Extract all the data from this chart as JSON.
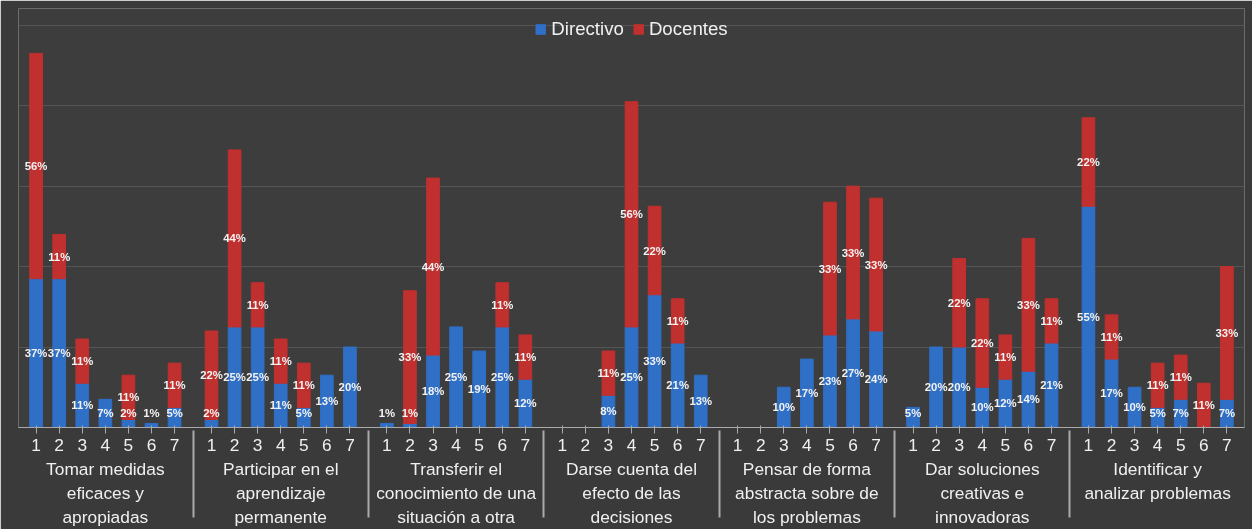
{
  "chart_data": {
    "type": "bar",
    "stacked": true,
    "data_labels": true,
    "legend": "top",
    "grid": "y",
    "categories": [
      "1",
      "2",
      "3",
      "4",
      "5",
      "6",
      "7",
      "1",
      "2",
      "3",
      "4",
      "5",
      "6",
      "7",
      "1",
      "2",
      "3",
      "4",
      "5",
      "6",
      "7",
      "1",
      "2",
      "3",
      "4",
      "5",
      "6",
      "7",
      "1",
      "2",
      "3",
      "4",
      "5",
      "6",
      "7",
      "1",
      "2",
      "3",
      "4",
      "5",
      "6",
      "7",
      "1",
      "2",
      "3",
      "4",
      "5",
      "6",
      "7"
    ],
    "annotations": [
      "Tomar medidas eficaces y apropiadas",
      "Participar en el aprendizaje permanente",
      "Transferir el conocimiento de una situación a otra",
      "Darse cuenta del efecto de las decisiones",
      "Pensar de forma abstracta sobre de los problemas",
      "Dar soluciones creativas e innovadoras",
      "Identificar y analizar problemas"
    ],
    "tick_labels": "x",
    "series": [
      {
        "name": "Directivo",
        "color": "#2f6fc6",
        "values": [
          37,
          37,
          11,
          7,
          2,
          1,
          5,
          2,
          25,
          25,
          11,
          5,
          13,
          20,
          1,
          1,
          18,
          25,
          19,
          25,
          12,
          null,
          null,
          8,
          25,
          33,
          21,
          13,
          null,
          null,
          10,
          17,
          23,
          27,
          24,
          5,
          20,
          20,
          10,
          12,
          14,
          21,
          55,
          17,
          10,
          5,
          7,
          null,
          7
        ],
        "value_labels": [
          "37%",
          "37%",
          "11%",
          "7%",
          "2%",
          "1%",
          "5%",
          "2%",
          "25%",
          "25%",
          "11%",
          "5%",
          "13%",
          "20%",
          "1%",
          "1%",
          "18%",
          "25%",
          "19%",
          "25%",
          "12%",
          null,
          null,
          "8%",
          "25%",
          "33%",
          "21%",
          "13%",
          null,
          null,
          "10%",
          "17%",
          "23%",
          "27%",
          "24%",
          "5%",
          "20%",
          "20%",
          "10%",
          "12%",
          "14%",
          "21%",
          "55%",
          "17%",
          "10%",
          "5%",
          "7%",
          null,
          "7%"
        ]
      },
      {
        "name": "Docentes",
        "color": "#c0302e",
        "values": [
          56,
          11,
          11,
          null,
          11,
          null,
          11,
          22,
          44,
          11,
          11,
          11,
          null,
          null,
          null,
          33,
          44,
          null,
          null,
          11,
          11,
          null,
          null,
          11,
          56,
          22,
          11,
          null,
          null,
          null,
          null,
          null,
          33,
          33,
          33,
          null,
          null,
          22,
          22,
          11,
          33,
          11,
          22,
          11,
          null,
          11,
          11,
          11,
          33
        ],
        "value_labels": [
          "56%",
          "11%",
          "11%",
          null,
          "11%",
          null,
          "11%",
          "22%",
          "44%",
          "11%",
          "11%",
          "11%",
          null,
          null,
          null,
          "33%",
          "44%",
          null,
          null,
          "11%",
          "11%",
          null,
          null,
          "11%",
          "56%",
          "22%",
          "11%",
          null,
          null,
          null,
          null,
          null,
          "33%",
          "33%",
          "33%",
          null,
          null,
          "22%",
          "22%",
          "11%",
          "33%",
          "11%",
          "22%",
          "11%",
          null,
          "11%",
          "11%",
          "11%",
          "33%"
        ]
      }
    ]
  }
}
